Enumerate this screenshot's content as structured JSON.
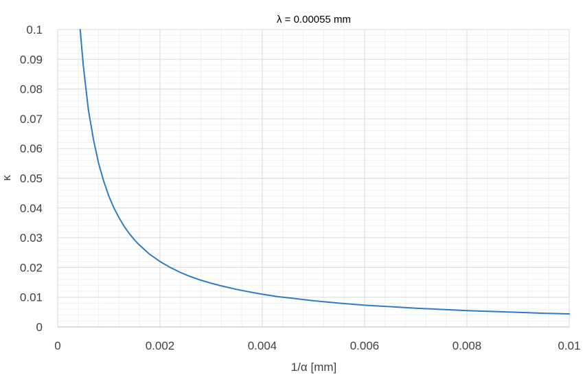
{
  "chart_data": {
    "type": "line",
    "title": "λ = 0.00055 mm",
    "xlabel": "1/α [mm]",
    "ylabel": "κ",
    "xlim": [
      0,
      0.01
    ],
    "ylim": [
      0,
      0.1
    ],
    "x_ticks": [
      0,
      0.002,
      0.004,
      0.006,
      0.008,
      0.01
    ],
    "x_tick_labels": [
      "0",
      "0.002",
      "0.004",
      "0.006",
      "0.008",
      "0.01"
    ],
    "y_ticks": [
      0,
      0.01,
      0.02,
      0.03,
      0.04,
      0.05,
      0.06,
      0.07,
      0.08,
      0.09,
      0.1
    ],
    "y_tick_labels": [
      "0",
      "0.01",
      "0.02",
      "0.03",
      "0.04",
      "0.05",
      "0.06",
      "0.07",
      "0.08",
      "0.09",
      "0.1"
    ],
    "grid": true,
    "minor_grid": true,
    "series": [
      {
        "color": "#2E7BC4",
        "x": [
          0.00044,
          0.0005,
          0.0006,
          0.0007,
          0.0008,
          0.0009,
          0.001,
          0.0011,
          0.0012,
          0.0013,
          0.0014,
          0.0015,
          0.0016,
          0.0018,
          0.002,
          0.0022,
          0.0024,
          0.0026,
          0.0028,
          0.003,
          0.0032,
          0.0035,
          0.0038,
          0.004,
          0.0043,
          0.0046,
          0.005,
          0.0055,
          0.006,
          0.0065,
          0.007,
          0.0075,
          0.008,
          0.0085,
          0.009,
          0.0095,
          0.01
        ],
        "y": [
          0.1,
          0.088,
          0.073,
          0.063,
          0.055,
          0.049,
          0.044,
          0.04,
          0.0367,
          0.0338,
          0.0314,
          0.0293,
          0.0275,
          0.0244,
          0.022,
          0.02,
          0.0183,
          0.0169,
          0.0157,
          0.0147,
          0.0138,
          0.0126,
          0.0116,
          0.011,
          0.0102,
          0.0096,
          0.0088,
          0.008,
          0.0073,
          0.0068,
          0.0063,
          0.0059,
          0.0055,
          0.0052,
          0.0049,
          0.0046,
          0.0044
        ]
      }
    ]
  }
}
